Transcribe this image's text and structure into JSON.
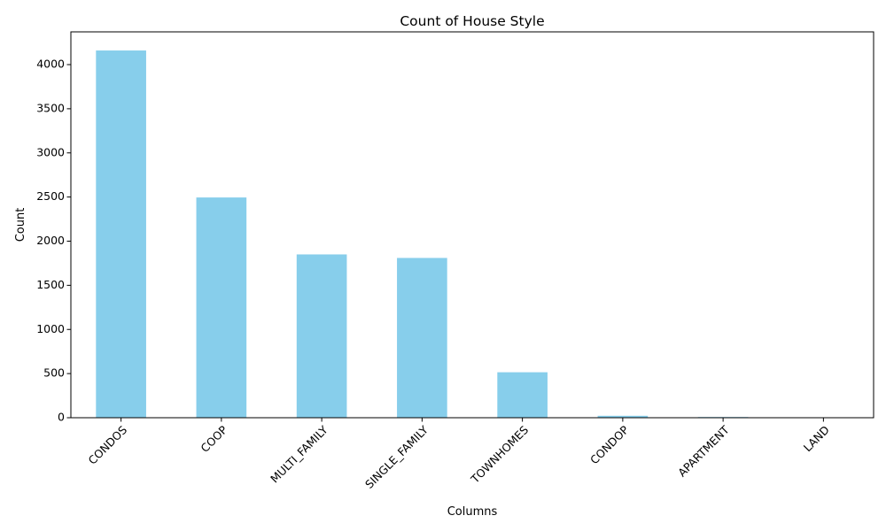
{
  "chart_data": {
    "type": "bar",
    "title": "Count of House Style",
    "xlabel": "Columns",
    "ylabel": "Count",
    "categories": [
      "CONDOS",
      "COOP",
      "MULTI_FAMILY",
      "SINGLE_FAMILY",
      "TOWNHOMES",
      "CONDOP",
      "APARTMENT",
      "LAND"
    ],
    "values": [
      4160,
      2495,
      1850,
      1810,
      515,
      22,
      8,
      1
    ],
    "ylim": [
      0,
      4371
    ],
    "yticks": [
      0,
      500,
      1000,
      1500,
      2000,
      2500,
      3000,
      3500,
      4000
    ],
    "grid": false,
    "legend": "none",
    "bar_color": "#87CEEB",
    "xtick_rotation_deg": 45
  }
}
